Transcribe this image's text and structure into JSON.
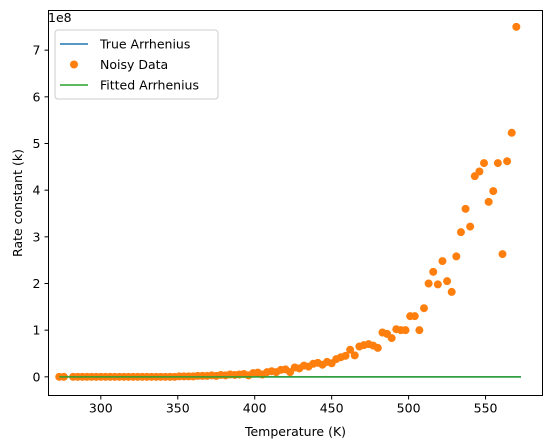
{
  "chart_data": {
    "type": "scatter",
    "xlabel": "Temperature (K)",
    "ylabel": "Rate constant (k)",
    "y_offset_label": "1e8",
    "xlim": [
      266,
      587
    ],
    "ylim": [
      -0.4,
      7.85
    ],
    "y_units_multiplier": 100000000,
    "x_ticks": [
      300,
      350,
      400,
      450,
      500,
      550
    ],
    "y_ticks": [
      0,
      1,
      2,
      3,
      4,
      5,
      6,
      7
    ],
    "grid": false,
    "legend_placement": "upper-left",
    "colors": {
      "true_line": "#1f77b4",
      "noisy_points": "#ff7f0e",
      "fitted_line": "#2ca02c"
    },
    "series": [
      {
        "name": "True Arrhenius",
        "kind": "line",
        "curve": "arrhenius",
        "prefactor": 20000000000000000,
        "activation_temperature": 17880,
        "x_range": [
          273,
          573
        ]
      },
      {
        "name": "Noisy Data",
        "kind": "scatter",
        "points": [
          [
            273,
            0
          ],
          [
            276,
            0
          ],
          [
            282,
            0
          ],
          [
            285,
            0
          ],
          [
            288,
            0
          ],
          [
            291,
            0
          ],
          [
            294,
            0
          ],
          [
            297,
            0
          ],
          [
            300,
            0
          ],
          [
            303,
            0
          ],
          [
            306,
            0
          ],
          [
            309,
            0
          ],
          [
            312,
            0
          ],
          [
            315,
            0
          ],
          [
            318,
            0
          ],
          [
            321,
            0
          ],
          [
            324,
            0
          ],
          [
            327,
            0
          ],
          [
            330,
            0
          ],
          [
            333,
            0
          ],
          [
            336,
            0
          ],
          [
            339,
            0
          ],
          [
            342,
            0
          ],
          [
            345,
            0
          ],
          [
            348,
            0
          ],
          [
            351,
            0.01
          ],
          [
            354,
            0.01
          ],
          [
            357,
            0.01
          ],
          [
            360,
            0.01
          ],
          [
            363,
            0.02
          ],
          [
            366,
            0.02
          ],
          [
            369,
            0.02
          ],
          [
            372,
            0.03
          ],
          [
            375,
            0.02
          ],
          [
            378,
            0.04
          ],
          [
            381,
            0.03
          ],
          [
            384,
            0.05
          ],
          [
            387,
            0.04
          ],
          [
            390,
            0.05
          ],
          [
            393,
            0.06
          ],
          [
            396,
            0.03
          ],
          [
            399,
            0.08
          ],
          [
            402,
            0.09
          ],
          [
            405,
            0.05
          ],
          [
            408,
            0.1
          ],
          [
            411,
            0.12
          ],
          [
            414,
            0.1
          ],
          [
            417,
            0.15
          ],
          [
            420,
            0.16
          ],
          [
            423,
            0.1
          ],
          [
            426,
            0.2
          ],
          [
            429,
            0.18
          ],
          [
            432,
            0.24
          ],
          [
            435,
            0.22
          ],
          [
            438,
            0.28
          ],
          [
            441,
            0.3
          ],
          [
            444,
            0.26
          ],
          [
            447,
            0.32
          ],
          [
            450,
            0.29
          ],
          [
            453,
            0.38
          ],
          [
            456,
            0.42
          ],
          [
            459,
            0.45
          ],
          [
            462,
            0.58
          ],
          [
            465,
            0.46
          ],
          [
            468,
            0.65
          ],
          [
            471,
            0.68
          ],
          [
            474,
            0.7
          ],
          [
            477,
            0.67
          ],
          [
            480,
            0.62
          ],
          [
            483,
            0.95
          ],
          [
            486,
            0.92
          ],
          [
            489,
            0.83
          ],
          [
            492,
            1.02
          ],
          [
            495,
            1.0
          ],
          [
            498,
            1.0
          ],
          [
            501,
            1.3
          ],
          [
            504,
            1.3
          ],
          [
            507,
            1.0
          ],
          [
            510,
            1.47
          ],
          [
            513,
            2.0
          ],
          [
            516,
            2.25
          ],
          [
            519,
            1.98
          ],
          [
            522,
            2.48
          ],
          [
            525,
            2.05
          ],
          [
            528,
            1.82
          ],
          [
            531,
            2.58
          ],
          [
            534,
            3.1
          ],
          [
            537,
            3.6
          ],
          [
            540,
            3.22
          ],
          [
            543,
            4.3
          ],
          [
            546,
            4.4
          ],
          [
            549,
            4.58
          ],
          [
            552,
            3.75
          ],
          [
            555,
            3.98
          ],
          [
            558,
            4.58
          ],
          [
            561,
            2.63
          ],
          [
            564,
            4.62
          ],
          [
            567,
            5.23
          ],
          [
            570,
            7.5
          ]
        ]
      },
      {
        "name": "Fitted Arrhenius",
        "kind": "line",
        "curve": "arrhenius",
        "prefactor": 20000000000000000,
        "activation_temperature": 17890,
        "x_range": [
          273,
          573
        ]
      }
    ]
  }
}
